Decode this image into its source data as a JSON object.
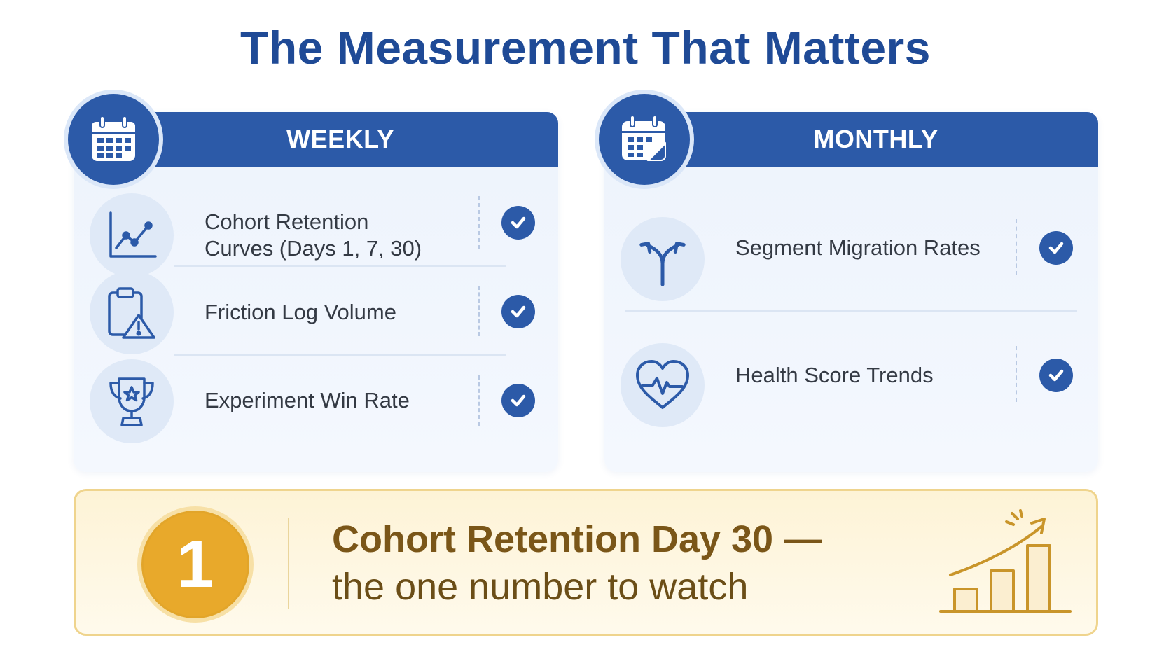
{
  "page": {
    "title": "The Measurement That Matters"
  },
  "weekly": {
    "header": "WEEKLY",
    "icon": "calendar-icon",
    "metrics": [
      {
        "label": "Cohort Retention\nCurves (Days 1, 7, 30)",
        "icon": "line-chart-icon",
        "checked": true
      },
      {
        "label": "Friction Log Volume",
        "icon": "clipboard-warning-icon",
        "checked": true
      },
      {
        "label": "Experiment Win Rate",
        "icon": "trophy-icon",
        "checked": true
      }
    ]
  },
  "monthly": {
    "header": "MONTHLY",
    "icon": "monthly-calendar-icon",
    "metrics": [
      {
        "label": "Segment Migration Rates",
        "icon": "split-arrows-icon",
        "checked": true
      },
      {
        "label": "Health Score Trends",
        "icon": "heart-pulse-icon",
        "checked": true
      }
    ]
  },
  "callout": {
    "rank": "1",
    "headline": "Cohort Retention Day 30 —",
    "subline": "the one number to watch",
    "icon": "rising-bar-chart-icon"
  },
  "colors": {
    "primary": "#2c5aa8",
    "title": "#1f4a96",
    "panel_bg": "#edf3fc",
    "gold": "#e8a92b",
    "callout_text": "#7a5618"
  }
}
